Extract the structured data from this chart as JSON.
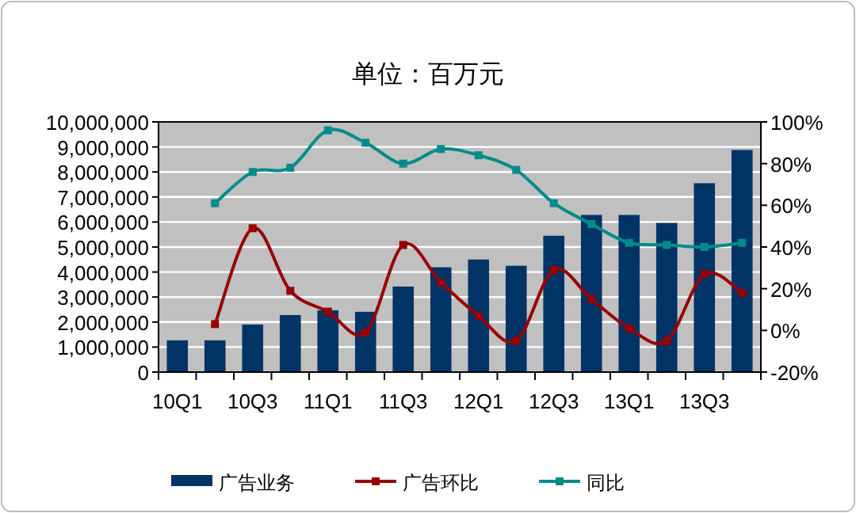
{
  "chart_data": {
    "type": "bar",
    "title": "单位：百万元",
    "categories": [
      "10Q1",
      null,
      "10Q3",
      null,
      "11Q1",
      null,
      "11Q3",
      null,
      "12Q1",
      null,
      "12Q3",
      null,
      "13Q1",
      null,
      "13Q3",
      null
    ],
    "series": [
      {
        "name": "广告业务",
        "color": "#003366",
        "values": [
          1270000,
          1270000,
          1900000,
          2280000,
          2470000,
          2410000,
          3420000,
          4190000,
          4500000,
          4250000,
          5450000,
          6280000,
          6280000,
          5960000,
          7550000,
          8880000
        ]
      },
      {
        "name": "广告环比",
        "type": "line",
        "axis": "y2",
        "color": "#990000",
        "marker": "square",
        "values": [
          null,
          3,
          49,
          19,
          9,
          -1,
          41,
          23,
          7,
          -5,
          29,
          15,
          1,
          -5,
          27,
          18
        ]
      },
      {
        "name": "同比",
        "type": "line",
        "axis": "y2",
        "color": "#008b8b",
        "marker": "square",
        "values": [
          null,
          61,
          76,
          78,
          96,
          90,
          80,
          87,
          84,
          77,
          61,
          51,
          42,
          41,
          40,
          42
        ]
      }
    ],
    "ylim": [
      0,
      10000000
    ],
    "yticks": [
      0,
      {
        "value": 1000000,
        "label": "1,000,000"
      },
      {
        "value": 2000000,
        "label": "2,000,000"
      },
      {
        "value": 3000000,
        "label": "3,000,000"
      },
      {
        "value": 4000000,
        "label": "4,000,000"
      },
      {
        "value": 5000000,
        "label": "5,000,000"
      },
      {
        "value": 6000000,
        "label": "6,000,000"
      },
      {
        "value": 7000000,
        "label": "7,000,000"
      },
      {
        "value": 8000000,
        "label": "8,000,000"
      },
      {
        "value": 9000000,
        "label": "9,000,000"
      },
      {
        "value": 10000000,
        "label": "10,000,000"
      }
    ],
    "y2lim": [
      -20,
      100
    ],
    "y2ticks": [
      {
        "value": -20,
        "label": "-20%"
      },
      {
        "value": 0,
        "label": "0%"
      },
      {
        "value": 20,
        "label": "20%"
      },
      {
        "value": 40,
        "label": "40%"
      },
      {
        "value": 60,
        "label": "60%"
      },
      {
        "value": 80,
        "label": "80%"
      },
      {
        "value": 100,
        "label": "100%"
      }
    ],
    "grid": "y",
    "legend": "bottom"
  }
}
